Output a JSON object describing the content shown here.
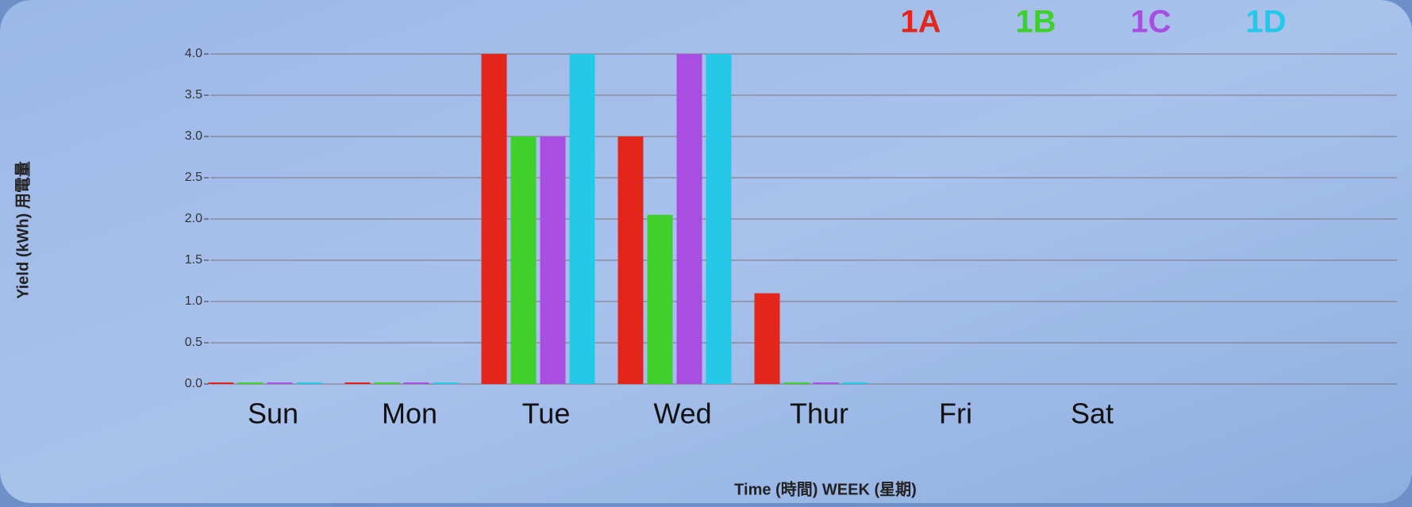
{
  "chart_data": {
    "type": "bar",
    "y_label": "Yield (kWh) 用電量",
    "x_label": "Time (時間) WEEK (星期)",
    "categories": [
      "Sun",
      "Mon",
      "Tue",
      "Wed",
      "Thur",
      "Fri",
      "Sat"
    ],
    "series": [
      {
        "name": "1A",
        "color": "#e3261c",
        "values": [
          0,
          0,
          4,
          3,
          1.1,
          null,
          null
        ]
      },
      {
        "name": "1B",
        "color": "#3fd02c",
        "values": [
          0,
          0,
          3,
          2.05,
          0,
          null,
          null
        ]
      },
      {
        "name": "1C",
        "color": "#a84ee2",
        "values": [
          0,
          0,
          3,
          4,
          0,
          null,
          null
        ]
      },
      {
        "name": "1D",
        "color": "#24c9ea",
        "values": [
          0,
          0,
          4,
          4,
          0,
          null,
          null
        ]
      }
    ],
    "ylim": [
      0,
      4
    ],
    "yticks": [
      {
        "value": 0,
        "label": "0.0"
      },
      {
        "value": 0.5,
        "label": "0.5"
      },
      {
        "value": 1,
        "label": "1.0"
      },
      {
        "value": 1.5,
        "label": "1.5"
      },
      {
        "value": 2,
        "label": "2.0"
      },
      {
        "value": 2.5,
        "label": "2.5"
      },
      {
        "value": 3,
        "label": "3.0"
      },
      {
        "value": 3.5,
        "label": "3.5"
      },
      {
        "value": 4,
        "label": "4.0"
      }
    ],
    "grid": true
  }
}
